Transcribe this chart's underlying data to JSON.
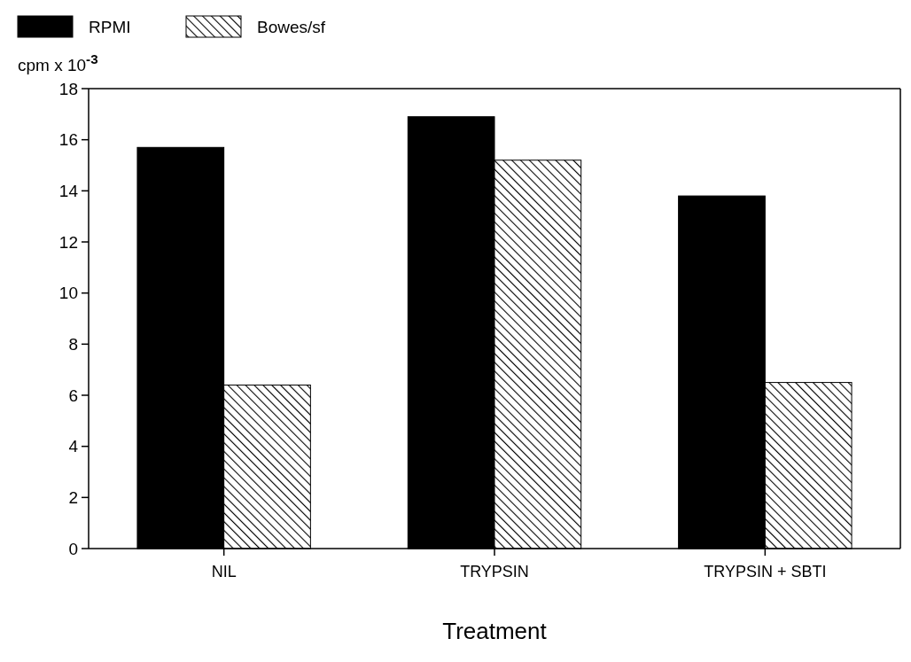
{
  "chart_data": {
    "type": "bar",
    "xlabel": "Treatment",
    "ylabel": "cpm x 10$^{-3}$",
    "categories": [
      "NIL",
      "TRYPSIN",
      "TRYPSIN + SBTI"
    ],
    "series": [
      {
        "name": "RPMI",
        "color": "#000000",
        "values": [
          15.7,
          16.9,
          13.8
        ]
      },
      {
        "name": "Bowes/sf",
        "color": "#000000",
        "values": [
          6.4,
          15.2,
          6.5
        ]
      }
    ],
    "ylim": [
      0,
      18
    ],
    "yticks": [
      0,
      2,
      4,
      6,
      8,
      10,
      12,
      14,
      16,
      18
    ],
    "legend": "top left",
    "grid": false
  }
}
